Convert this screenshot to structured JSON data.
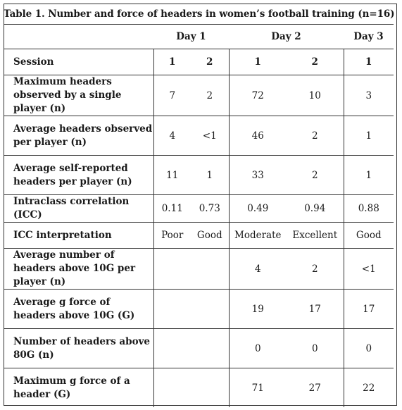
{
  "caption": "Table 1. Number and force of headers in women’s football training (n=16)",
  "headers": {
    "empty": "",
    "day1": "Day 1",
    "day2": "Day 2",
    "day3": "Day 3"
  },
  "rows": [
    {
      "label": "Session",
      "values": [
        "1",
        "2",
        "1",
        "2",
        "1"
      ]
    },
    {
      "label": "Maximum headers observed by a single player (n)",
      "values": [
        "7",
        "2",
        "72",
        "10",
        "3"
      ]
    },
    {
      "label": "Average headers observed per player (n)",
      "values": [
        "4",
        "<1",
        "46",
        "2",
        "1"
      ]
    },
    {
      "label": "Average self-reported headers per player (n)",
      "values": [
        "11",
        "1",
        "33",
        "2",
        "1"
      ]
    },
    {
      "label": "Intraclass correlation (ICC)",
      "values": [
        "0.11",
        "0.73",
        "0.49",
        "0.94",
        "0.88"
      ]
    },
    {
      "label": "ICC interpretation",
      "values": [
        "Poor",
        "Good",
        "Moderate",
        "Excellent",
        "Good"
      ]
    },
    {
      "label": "Average number of headers above 10G per player (n)",
      "values": [
        "",
        "",
        "4",
        "2",
        "<1"
      ]
    },
    {
      "label": "Average g force of headers above 10G (G)",
      "values": [
        "",
        "",
        "19",
        "17",
        "17"
      ]
    },
    {
      "label": "Number of headers above 80G (n)",
      "values": [
        "",
        "",
        "0",
        "0",
        "0"
      ]
    },
    {
      "label": "Maximum g force of a header (G)",
      "values": [
        "",
        "",
        "71",
        "27",
        "22"
      ]
    }
  ]
}
